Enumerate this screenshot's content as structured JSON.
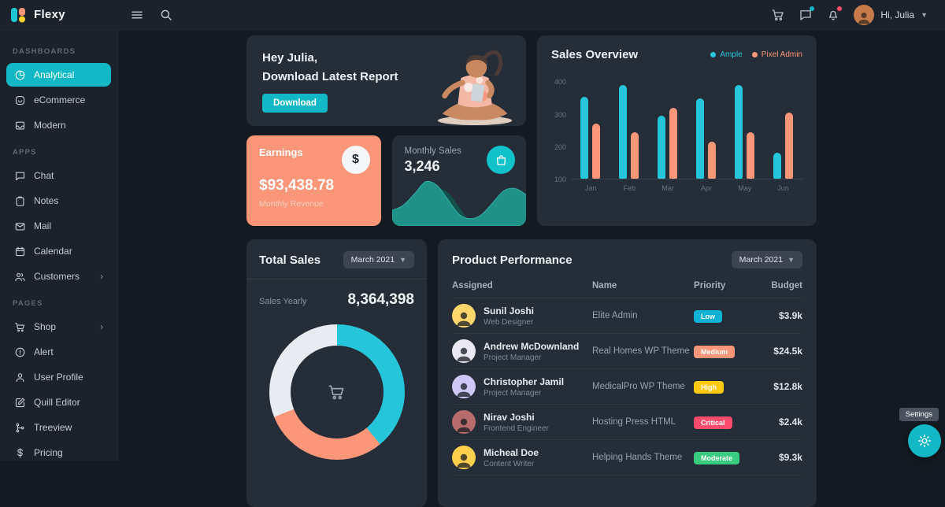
{
  "brand": {
    "name": "Flexy"
  },
  "topbar": {
    "user_greeting": "Hi, Julia"
  },
  "sidebar": {
    "sections": [
      {
        "label": "DASHBOARDS",
        "items": [
          {
            "label": "Analytical",
            "icon": "analytics-icon",
            "active": true
          },
          {
            "label": "eCommerce",
            "icon": "ecommerce-icon"
          },
          {
            "label": "Modern",
            "icon": "modern-icon"
          }
        ]
      },
      {
        "label": "APPS",
        "items": [
          {
            "label": "Chat",
            "icon": "chat-icon"
          },
          {
            "label": "Notes",
            "icon": "notes-icon"
          },
          {
            "label": "Mail",
            "icon": "mail-icon"
          },
          {
            "label": "Calendar",
            "icon": "calendar-icon"
          },
          {
            "label": "Customers",
            "icon": "customers-icon",
            "chevron": "›"
          }
        ]
      },
      {
        "label": "PAGES",
        "items": [
          {
            "label": "Shop",
            "icon": "shop-icon",
            "chevron": "›"
          },
          {
            "label": "Alert",
            "icon": "alert-icon"
          },
          {
            "label": "User Profile",
            "icon": "user-profile-icon"
          },
          {
            "label": "Quill Editor",
            "icon": "quill-editor-icon"
          },
          {
            "label": "Treeview",
            "icon": "treeview-icon"
          },
          {
            "label": "Pricing",
            "icon": "pricing-icon"
          }
        ]
      }
    ]
  },
  "greeting_card": {
    "line1": "Hey Julia,",
    "line2": "Download Latest Report",
    "button_label": "Download"
  },
  "sales_overview": {
    "title": "Sales Overview"
  },
  "earnings_card": {
    "title": "Earnings",
    "value": "$93,438.78",
    "subtitle": "Monthly Revenue"
  },
  "monthly_sales_card": {
    "title": "Monthly Sales",
    "value": "3,246"
  },
  "total_sales_card": {
    "title": "Total Sales",
    "period": "March 2021",
    "stat_label": "Sales Yearly",
    "stat_value": "8,364,398"
  },
  "product_performance": {
    "title": "Product Performance",
    "period": "March 2021",
    "columns": [
      "Assigned",
      "Name",
      "Priority",
      "Budget"
    ],
    "rows": [
      {
        "name": "Sunil Joshi",
        "role": "Web Designer",
        "project": "Elite Admin",
        "priority": "Low",
        "priority_color": "#0bb2d4",
        "budget": "$3.9k",
        "avatar_color": "#ffd66b"
      },
      {
        "name": "Andrew McDownland",
        "role": "Project Manager",
        "project": "Real Homes WP Theme",
        "priority": "Medium",
        "priority_color": "#fb9678",
        "budget": "$24.5k",
        "avatar_color": "#e9e9ef"
      },
      {
        "name": "Christopher Jamil",
        "role": "Project Manager",
        "project": "MedicalPro WP Theme",
        "priority": "High",
        "priority_color": "#fec90f",
        "budget": "$12.8k",
        "avatar_color": "#cfc8f7"
      },
      {
        "name": "Nirav Joshi",
        "role": "Frontend Engineer",
        "project": "Hosting Press HTML",
        "priority": "Critical",
        "priority_color": "#fc4b6c",
        "budget": "$2.4k",
        "avatar_color": "#b86b6b"
      },
      {
        "name": "Micheal Doe",
        "role": "Content Writer",
        "project": "Helping Hands Theme",
        "priority": "Moderate",
        "priority_color": "#39cb7f",
        "budget": "$9.3k",
        "avatar_color": "#ffcf4d"
      }
    ]
  },
  "settings": {
    "tooltip": "Settings"
  },
  "colors": {
    "accent": "#12b8c6",
    "salmon": "#fb9678",
    "yellow": "#fec90f",
    "red": "#fc4b6c",
    "green": "#39cb7f"
  },
  "chart_data": [
    {
      "type": "bar",
      "title": "Sales Overview",
      "categories": [
        "Jan",
        "Feb",
        "Mar",
        "Apr",
        "May",
        "Jun"
      ],
      "series": [
        {
          "name": "Ample",
          "color": "#26c6da",
          "values": [
            355,
            390,
            295,
            350,
            390,
            180
          ]
        },
        {
          "name": "Pixel Admin",
          "color": "#fb9678",
          "values": [
            270,
            245,
            320,
            215,
            245,
            305
          ]
        }
      ],
      "ylim": [
        100,
        420
      ],
      "yticks": [
        100,
        200,
        300,
        400
      ],
      "grid": false,
      "legend_position": "top-right"
    },
    {
      "type": "pie",
      "title": "Total Sales",
      "segments": [
        {
          "label": "Ample",
          "value": 39,
          "color": "#26c6da"
        },
        {
          "label": "Pixel Admin",
          "value": 30,
          "color": "#fb9678"
        },
        {
          "label": "Other",
          "value": 31,
          "color": "#e8ecf1"
        }
      ]
    },
    {
      "type": "area",
      "title": "Monthly Sales trend",
      "values": [
        30,
        40,
        62,
        85,
        78,
        50,
        22,
        14,
        22,
        45,
        68,
        72,
        60
      ],
      "color": "#1f9187"
    }
  ]
}
